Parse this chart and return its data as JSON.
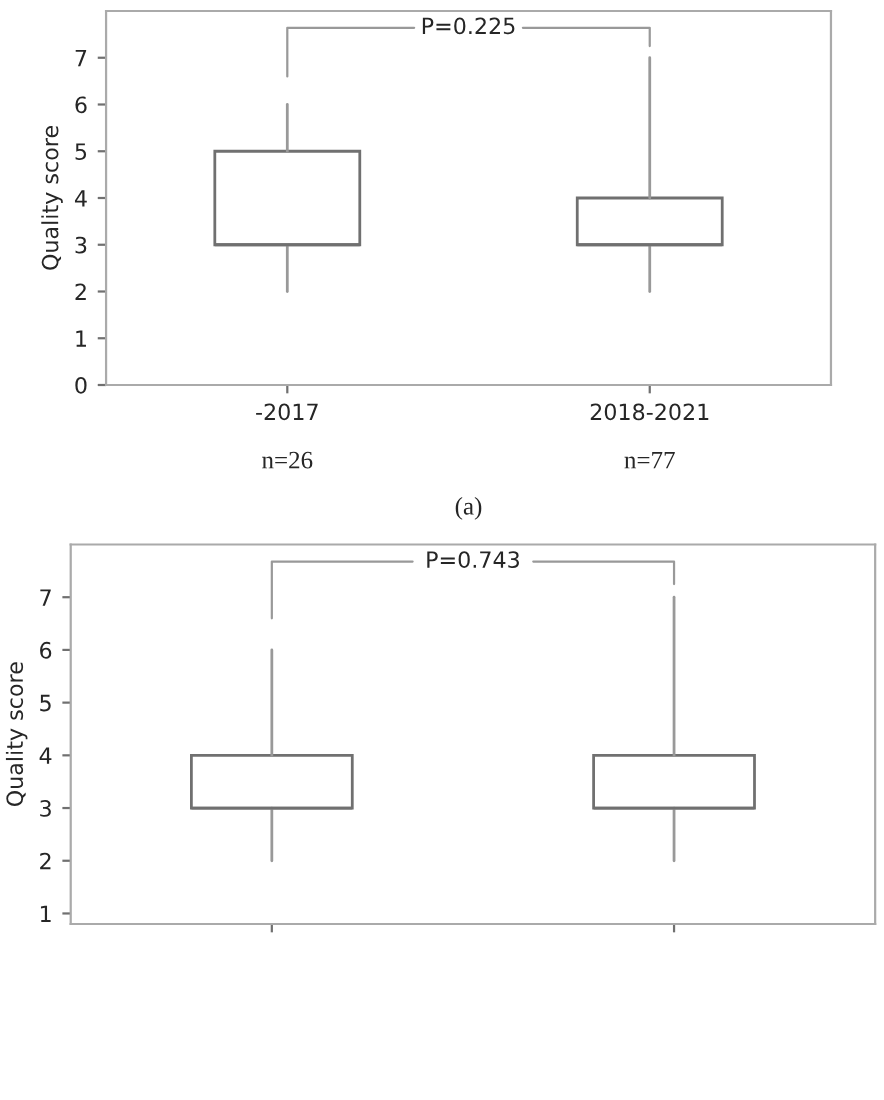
{
  "chart_data": [
    {
      "type": "box",
      "ylabel": "Quality score",
      "categories": [
        "-2017",
        "2018-2021"
      ],
      "boxes": [
        {
          "low": 2,
          "q1": 3,
          "median": 3,
          "q3": 5,
          "high": 6
        },
        {
          "low": 2,
          "q1": 3,
          "median": 3,
          "q3": 4,
          "high": 7
        }
      ],
      "ylim": [
        0,
        8
      ],
      "yticks": [
        0,
        1,
        2,
        3,
        4,
        5,
        6,
        7
      ],
      "grid": false,
      "annotations": [
        "P=0.225",
        "n=26",
        "n=77",
        "(a)"
      ]
    },
    {
      "type": "box",
      "ylabel": "Quality score",
      "categories": [
        null,
        null
      ],
      "boxes": [
        {
          "low": 2,
          "q1": 3,
          "median": 3,
          "q3": 4,
          "high": 6
        },
        {
          "low": 2,
          "q1": 3,
          "median": 3,
          "q3": 4,
          "high": 7
        }
      ],
      "ylim": [
        0.8,
        8
      ],
      "yticks": [
        1,
        2,
        3,
        4,
        5,
        6,
        7
      ],
      "grid": false,
      "annotations": [
        "P=0.743"
      ]
    }
  ]
}
